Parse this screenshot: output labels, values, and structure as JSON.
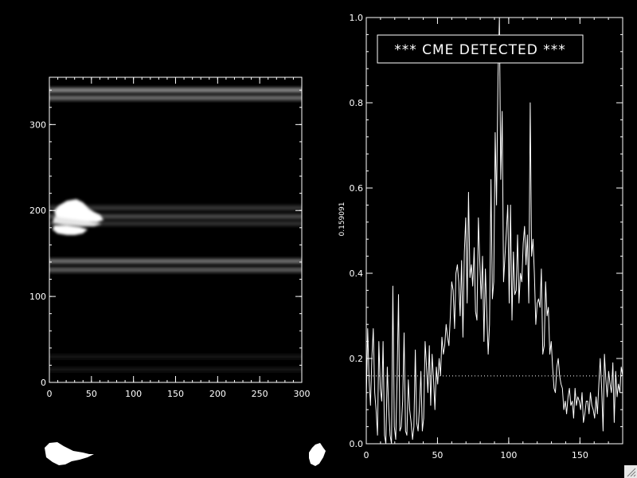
{
  "colors": {
    "background": "#000000",
    "foreground": "#ffffff"
  },
  "chart_data": [
    {
      "type": "heatmap",
      "xlim": [
        0,
        300
      ],
      "ylim": [
        0,
        355
      ],
      "x_ticks": [
        0,
        50,
        100,
        150,
        200,
        250,
        300
      ],
      "y_ticks": [
        0,
        100,
        200,
        300
      ],
      "bands": [
        {
          "y": 340,
          "intensity": 0.55
        },
        {
          "y": 331,
          "intensity": 0.45
        },
        {
          "y": 203,
          "intensity": 0.22
        },
        {
          "y": 193,
          "intensity": 0.3
        },
        {
          "y": 185,
          "intensity": 0.2
        },
        {
          "y": 141,
          "intensity": 0.45
        },
        {
          "y": 131,
          "intensity": 0.38
        },
        {
          "y": 30,
          "intensity": 0.08
        },
        {
          "y": 15,
          "intensity": 0.07
        }
      ],
      "bright_region": {
        "x": [
          5,
          65
        ],
        "y": [
          175,
          212
        ]
      }
    },
    {
      "type": "line",
      "xlim": [
        0,
        180
      ],
      "ylim": [
        0,
        1.0
      ],
      "x_ticks": [
        0,
        50,
        100,
        150
      ],
      "y_ticks": [
        0.0,
        0.2,
        0.4,
        0.6,
        0.8,
        1.0
      ],
      "ylabel": "0.159091",
      "annotation": "*** CME DETECTED ***",
      "threshold": 0.159091,
      "series": [
        {
          "values": [
            0.1,
            0.27,
            0.15,
            0.09,
            0.2,
            0.27,
            0.12,
            0.08,
            0.02,
            0.24,
            0.13,
            0.1,
            0.24,
            0.02,
            0.0,
            0.18,
            0.08,
            0.02,
            0.0,
            0.37,
            0.04,
            0.01,
            0.15,
            0.35,
            0.03,
            0.04,
            0.1,
            0.26,
            0.03,
            0.02,
            0.15,
            0.08,
            0.05,
            0.01,
            0.04,
            0.22,
            0.05,
            0.03,
            0.09,
            0.17,
            0.03,
            0.06,
            0.24,
            0.18,
            0.12,
            0.23,
            0.09,
            0.21,
            0.15,
            0.08,
            0.18,
            0.14,
            0.2,
            0.16,
            0.25,
            0.21,
            0.23,
            0.28,
            0.25,
            0.23,
            0.3,
            0.38,
            0.36,
            0.27,
            0.4,
            0.42,
            0.38,
            0.3,
            0.43,
            0.25,
            0.45,
            0.53,
            0.33,
            0.59,
            0.39,
            0.42,
            0.37,
            0.46,
            0.31,
            0.29,
            0.53,
            0.43,
            0.34,
            0.44,
            0.24,
            0.41,
            0.31,
            0.21,
            0.28,
            0.62,
            0.34,
            0.38,
            0.73,
            0.56,
            0.86,
            1.0,
            0.62,
            0.78,
            0.38,
            0.44,
            0.5,
            0.56,
            0.33,
            0.56,
            0.29,
            0.45,
            0.35,
            0.36,
            0.49,
            0.33,
            0.4,
            0.38,
            0.47,
            0.51,
            0.42,
            0.49,
            0.33,
            0.8,
            0.44,
            0.48,
            0.4,
            0.28,
            0.33,
            0.34,
            0.32,
            0.41,
            0.21,
            0.23,
            0.38,
            0.3,
            0.32,
            0.21,
            0.24,
            0.18,
            0.13,
            0.12,
            0.18,
            0.2,
            0.16,
            0.14,
            0.13,
            0.08,
            0.1,
            0.07,
            0.11,
            0.13,
            0.09,
            0.1,
            0.06,
            0.13,
            0.09,
            0.11,
            0.1,
            0.08,
            0.12,
            0.05,
            0.07,
            0.1,
            0.1,
            0.07,
            0.12,
            0.09,
            0.08,
            0.06,
            0.11,
            0.07,
            0.14,
            0.2,
            0.13,
            0.03,
            0.21,
            0.15,
            0.11,
            0.17,
            0.14,
            0.12,
            0.19,
            0.05,
            0.17,
            0.11,
            0.14,
            0.12,
            0.18,
            0.16
          ]
        }
      ]
    }
  ]
}
